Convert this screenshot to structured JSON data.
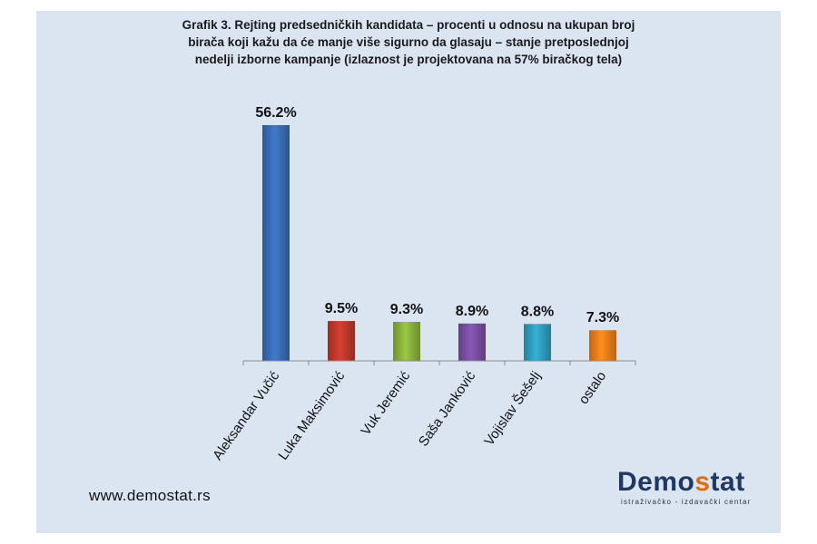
{
  "chart_data": {
    "type": "bar",
    "title_lines": [
      "Grafik 3. Rejting predsedničkih kandidata – procenti u odnosu na ukupan broj",
      "birača koji kažu da će manje više sigurno da glasaju – stanje pretposlednjoj",
      "nedelji izborne kampanje  (izlaznost je projektovana na 57% biračkog tela)"
    ],
    "categories": [
      "Aleksandar Vučić",
      "Luka Maksimović",
      "Vuk Jeremić",
      "Saša Janković",
      "Vojislav Šešelj",
      "ostalo"
    ],
    "values": [
      56.2,
      9.5,
      9.3,
      8.9,
      8.8,
      7.3
    ],
    "value_labels": [
      "56.2%",
      "9.5%",
      "9.3%",
      "8.9%",
      "8.8%",
      "7.3%"
    ],
    "colors": [
      "#3a6db5",
      "#c0392b",
      "#8ab33c",
      "#7a4fa3",
      "#2e9fc0",
      "#f07f1a"
    ],
    "ylim": [
      0,
      60
    ],
    "xlabel": "",
    "ylabel": "",
    "grid": false
  },
  "footer": {
    "website": "www.demostat.rs",
    "logo_part1": "Demo",
    "logo_accent": "s",
    "logo_part2": "tat",
    "logo_tagline": "istraživačko - izdavački centar"
  }
}
